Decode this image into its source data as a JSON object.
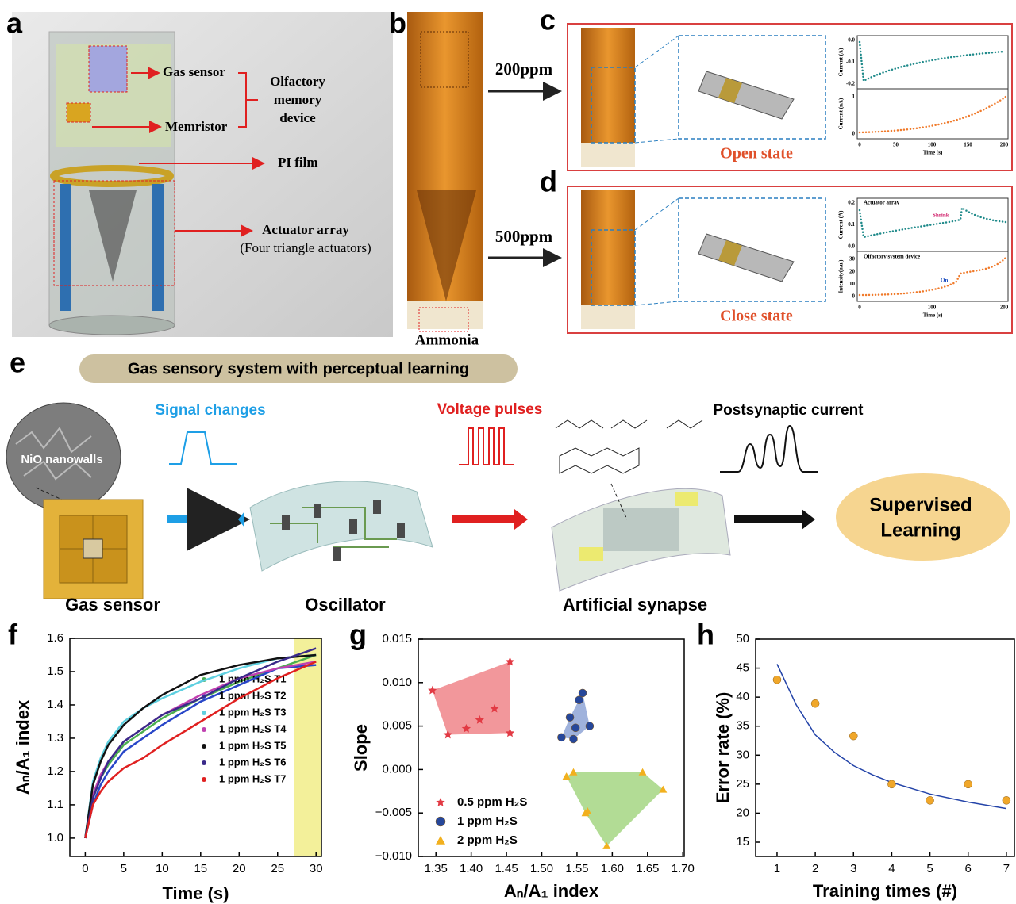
{
  "panels": {
    "a": {
      "letter": "a",
      "gas_sensor": "Gas sensor",
      "memristor": "Memristor",
      "device": [
        "Olfactory",
        "memory",
        "device"
      ],
      "pi_film": "PI film",
      "actuator": "Actuator array",
      "actuator_note": "(Four triangle actuators)"
    },
    "b": {
      "letter": "b",
      "ammonia": "Ammonia",
      "dose_low": "200ppm",
      "dose_high": "500ppm"
    },
    "c": {
      "letter": "c",
      "state": "Open state",
      "y_top": "Current (A)",
      "y_top_ticks": [
        "0.0",
        "-0.1",
        "-0.2"
      ],
      "y_bottom": "Current (nA)",
      "y_bottom_ticks": [
        "1",
        "0"
      ],
      "x_label": "Time (s)",
      "x_ticks": [
        "0",
        "50",
        "100",
        "150",
        "200"
      ]
    },
    "d": {
      "letter": "d",
      "state": "Close state",
      "top_name": "Actuator array",
      "bottom_name": "Olfactory system device",
      "shrink": "Shrink",
      "on": "On",
      "y_top": "Current (A)",
      "y_top_ticks": [
        "0.2",
        "0.1",
        "0.0"
      ],
      "y_bottom": "Intensity(a.u.)",
      "y_bottom_ticks": [
        "30",
        "20",
        "10",
        "0"
      ],
      "x_label": "Time (s)",
      "x_ticks": [
        "0",
        "100",
        "200"
      ]
    },
    "e": {
      "letter": "e",
      "banner": "Gas sensory system with perceptual learning",
      "signal": "Signal changes",
      "voltage": "Voltage pulses",
      "postsynaptic": "Postsynaptic current",
      "nanowalls": "NiO nanowalls",
      "supervised": [
        "Supervised",
        "Learning"
      ],
      "captions": [
        "Gas sensor",
        "Oscillator",
        "Artificial synapse"
      ]
    },
    "f": {
      "letter": "f"
    },
    "g": {
      "letter": "g"
    },
    "h": {
      "letter": "h"
    }
  },
  "chart_data": [
    {
      "type": "line",
      "x_label": "Time (s)",
      "y_label": "Aₙ/A₁ index",
      "x": [
        0,
        1,
        2,
        3,
        5,
        7.5,
        10,
        15,
        20,
        25,
        30
      ],
      "xlim": [
        -2,
        30.7
      ],
      "ylim": [
        0.945,
        1.6
      ],
      "xticks": [
        0,
        5,
        10,
        15,
        20,
        25,
        30
      ],
      "yticks": [
        {
          "value": 1,
          "label": "1.0"
        },
        1.1,
        1.2,
        1.3,
        1.4,
        1.5,
        1.6
      ],
      "highlight_x": [
        27.1,
        30.6
      ],
      "highlight_color": "#f3f09a",
      "series": [
        {
          "name": "1 ppm H₂S T1",
          "color": "#4caf50",
          "values": [
            1.0,
            1.12,
            1.18,
            1.22,
            1.28,
            1.32,
            1.36,
            1.42,
            1.47,
            1.51,
            1.55
          ]
        },
        {
          "name": "1 ppm H₂S T2",
          "color": "#2846c8",
          "values": [
            1.0,
            1.1,
            1.16,
            1.2,
            1.26,
            1.3,
            1.34,
            1.41,
            1.46,
            1.51,
            1.52
          ]
        },
        {
          "name": "1 ppm H₂S T3",
          "color": "#5fd0e0",
          "values": [
            1.0,
            1.17,
            1.24,
            1.29,
            1.35,
            1.39,
            1.42,
            1.47,
            1.51,
            1.54,
            1.55
          ]
        },
        {
          "name": "1 ppm H₂S T4",
          "color": "#c040b0",
          "values": [
            1.0,
            1.13,
            1.19,
            1.23,
            1.29,
            1.33,
            1.37,
            1.43,
            1.48,
            1.51,
            1.53
          ]
        },
        {
          "name": "1 ppm H₂S T5",
          "color": "#111111",
          "values": [
            1.0,
            1.16,
            1.23,
            1.28,
            1.34,
            1.39,
            1.43,
            1.49,
            1.52,
            1.54,
            1.55
          ]
        },
        {
          "name": "1 ppm H₂S T6",
          "color": "#3a2a8a",
          "values": [
            1.0,
            1.12,
            1.18,
            1.23,
            1.29,
            1.33,
            1.37,
            1.42,
            1.48,
            1.53,
            1.57
          ]
        },
        {
          "name": "1 ppm H₂S T7",
          "color": "#e02020",
          "values": [
            1.0,
            1.1,
            1.14,
            1.17,
            1.21,
            1.24,
            1.28,
            1.35,
            1.42,
            1.48,
            1.53
          ]
        }
      ]
    },
    {
      "type": "scatter",
      "x_label": "Aₙ/A₁ index",
      "y_label": "Slope",
      "xlim": [
        1.325,
        1.702
      ],
      "ylim": [
        -0.01,
        0.015
      ],
      "xticks": [
        1.35,
        {
          "value": 1.4,
          "label": "1.40"
        },
        1.45,
        {
          "value": 1.5,
          "label": "1.50"
        },
        1.55,
        {
          "value": 1.6,
          "label": "1.60"
        },
        1.65,
        {
          "value": 1.7,
          "label": "1.70"
        }
      ],
      "yticks": [
        {
          "value": -0.01,
          "label": "−0.010"
        },
        {
          "value": -0.005,
          "label": "−0.005"
        },
        {
          "value": 0,
          "label": "0.000"
        },
        {
          "value": 0.005,
          "label": "0.005"
        },
        {
          "value": 0.01,
          "label": "0.010"
        },
        {
          "value": 0.015,
          "label": "0.015"
        }
      ],
      "series": [
        {
          "name": "0.5 ppm H₂S",
          "color": "#e23a44",
          "hull_color": "#ee7479",
          "marker": "star",
          "x": [
            1.345,
            1.367,
            1.393,
            1.412,
            1.433,
            1.455,
            1.455
          ],
          "values": [
            0.0091,
            0.004,
            0.0047,
            0.0057,
            0.007,
            0.0124,
            0.0042
          ]
        },
        {
          "name": "1 ppm H₂S",
          "color": "#26479a",
          "hull_color": "#7f98d0",
          "marker": "circle",
          "x": [
            1.528,
            1.54,
            1.548,
            1.553,
            1.558,
            1.545,
            1.568
          ],
          "values": [
            0.0037,
            0.006,
            0.0048,
            0.008,
            0.0088,
            0.0035,
            0.005
          ]
        },
        {
          "name": "2 ppm H₂S",
          "color": "#f2b01e",
          "hull_color": "#98d072",
          "marker": "triangle",
          "x": [
            1.535,
            1.545,
            1.565,
            1.592,
            1.643,
            1.672,
            1.562
          ],
          "values": [
            -0.0008,
            -0.0003,
            -0.0048,
            -0.0088,
            -0.0003,
            -0.0023,
            -0.005
          ]
        }
      ]
    },
    {
      "type": "scatter",
      "x_label": "Training times (#)",
      "y_label": "Error rate (%)",
      "xlim": [
        0.44,
        7.21
      ],
      "ylim": [
        12.54,
        50
      ],
      "xticks": [
        1,
        2,
        3,
        4,
        5,
        6,
        7
      ],
      "yticks": [
        15,
        20,
        25,
        30,
        35,
        40,
        45,
        50
      ],
      "series": [
        {
          "color": "#f0a72a",
          "marker": "circle",
          "x": [
            1,
            2,
            3,
            4,
            5,
            6,
            7
          ],
          "values": [
            43,
            38.9,
            33.3,
            25,
            22.2,
            25,
            22.2
          ]
        }
      ],
      "fit": {
        "color": "#2343a8",
        "x": [
          1,
          1.5,
          2,
          2.5,
          3,
          3.5,
          4,
          5,
          6,
          7
        ],
        "values": [
          45.7,
          38.7,
          33.5,
          30.5,
          28.2,
          26.6,
          25.3,
          23.3,
          21.9,
          20.8
        ]
      }
    }
  ]
}
